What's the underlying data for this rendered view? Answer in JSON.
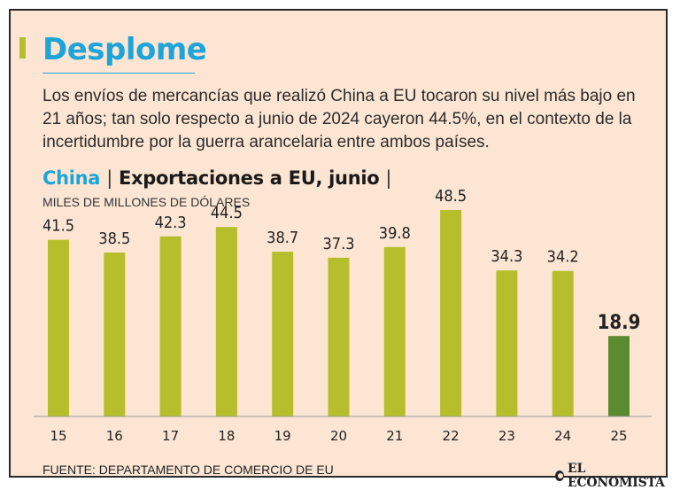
{
  "header": {
    "title": "Desplome",
    "description": "Los envíos de mercancías que realizó China a EU tocaron su nivel más bajo en 21 años; tan solo respecto a junio de 2024 cayeron 44.5%, en el contexto de la incertidumbre por la guerra arancelaria entre ambos países."
  },
  "chart_header": {
    "country": "China",
    "separator": "|",
    "subtitle": "Exportaciones a EU, junio",
    "trailing": "|",
    "units": "MILES DE MILLONES DE DÓLARES"
  },
  "footer": {
    "source": "FUENTE: DEPARTAMENTO DE COMERCIO DE EU",
    "logo_text": "EL ECONOMISTA"
  },
  "colors": {
    "background": "#fce6d3",
    "title": "#1ea4d8",
    "bar": "#b6bf2b",
    "bar_highlight": "#5c8a2e",
    "text": "#2b2b2b"
  },
  "chart_data": {
    "type": "bar",
    "title": "Exportaciones a EU, junio",
    "ylabel": "MILES DE MILLONES DE DÓLARES",
    "categories": [
      "15",
      "16",
      "17",
      "18",
      "19",
      "20",
      "21",
      "22",
      "23",
      "24",
      "25"
    ],
    "values": [
      41.5,
      38.5,
      42.3,
      44.5,
      38.7,
      37.3,
      39.8,
      48.5,
      34.3,
      34.2,
      18.9
    ],
    "labels": [
      "41.5",
      "38.5",
      "42.3",
      "44.5",
      "38.7",
      "37.3",
      "39.8",
      "48.5",
      "34.3",
      "34.2",
      "18.9"
    ],
    "highlight_index": 10,
    "ylim": [
      0,
      48.5
    ],
    "grid": false,
    "legend": "none"
  }
}
